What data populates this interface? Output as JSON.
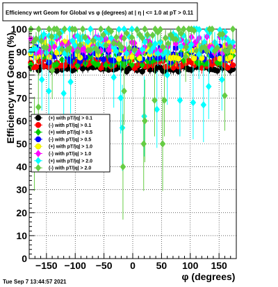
{
  "chart_data": {
    "type": "scatter",
    "title": "Efficiency wrt Geom for Global vs φ (degrees) at |  η | <= 1.0 at pT > 0.11",
    "xlabel": "φ (degrees)",
    "ylabel": "Efficiency wrt Geom (%)",
    "xlim": [
      -180,
      180
    ],
    "ylim": [
      0,
      100
    ],
    "x_ticks": [
      -150,
      -100,
      -50,
      0,
      50,
      100,
      150
    ],
    "x_tick_labels": [
      "−150",
      "−100",
      "−50",
      "0",
      "50",
      "100",
      "150"
    ],
    "y_ticks": [
      0,
      10,
      20,
      30,
      40,
      50,
      60,
      70,
      80,
      90,
      100
    ],
    "y_tick_labels": [
      "0",
      "10",
      "20",
      "30",
      "40",
      "50",
      "60",
      "70",
      "80",
      "90",
      "100"
    ],
    "grid": true,
    "legend_position": "middle-left",
    "series": [
      {
        "name": "(+) with pT/|q| > 0.1",
        "color": "#000000",
        "level": 83,
        "spread": 1.5
      },
      {
        "name": "(-) with pT/|q| > 0.1",
        "color": "#ff0000",
        "level": 85,
        "spread": 2
      },
      {
        "name": "(+) with pT/|q| > 0.5",
        "color": "#00cc00",
        "level": 87,
        "spread": 3
      },
      {
        "name": "(-) with pT/|q| > 0.5",
        "color": "#0000ff",
        "level": 89,
        "spread": 3.5
      },
      {
        "name": "(+) with pT/|q| > 1.0",
        "color": "#ffff00",
        "level": 91,
        "spread": 4
      },
      {
        "name": "(-) with pT/|q| > 1.0",
        "color": "#ff00ff",
        "level": 93,
        "spread": 4
      },
      {
        "name": "(+) with pT/|q| > 2.0",
        "color": "#00ffff",
        "level": 95,
        "spread": 6
      },
      {
        "name": "(-) with pT/|q| > 2.0",
        "color": "#66cc44",
        "level": 96,
        "spread": 6
      }
    ],
    "outliers": [
      {
        "series": 7,
        "x": -164,
        "y": 66
      },
      {
        "series": 7,
        "x": -171,
        "y": 50
      },
      {
        "series": 6,
        "x": -158,
        "y": 78
      },
      {
        "series": 6,
        "x": -146,
        "y": 73
      },
      {
        "series": 7,
        "x": -140,
        "y": 82
      },
      {
        "series": 6,
        "x": -120,
        "y": 72
      },
      {
        "series": 6,
        "x": -108,
        "y": 77
      },
      {
        "series": 6,
        "x": -33,
        "y": 79
      },
      {
        "series": 6,
        "x": -21,
        "y": 70
      },
      {
        "series": 6,
        "x": -18,
        "y": 57
      },
      {
        "series": 7,
        "x": -15,
        "y": 73
      },
      {
        "series": 7,
        "x": -17,
        "y": 40
      },
      {
        "series": 6,
        "x": 20,
        "y": 62
      },
      {
        "series": 7,
        "x": 21,
        "y": 60
      },
      {
        "series": 7,
        "x": 19,
        "y": 50
      },
      {
        "series": 6,
        "x": 42,
        "y": 65
      },
      {
        "series": 7,
        "x": 38,
        "y": 69
      },
      {
        "series": 7,
        "x": 55,
        "y": 69
      },
      {
        "series": 7,
        "x": 52,
        "y": 50
      },
      {
        "series": 6,
        "x": 60,
        "y": 80
      },
      {
        "series": 6,
        "x": 82,
        "y": 69
      },
      {
        "series": 6,
        "x": 105,
        "y": 68
      },
      {
        "series": 6,
        "x": 123,
        "y": 67
      },
      {
        "series": 6,
        "x": 132,
        "y": 75
      },
      {
        "series": 7,
        "x": 160,
        "y": 71
      },
      {
        "series": 6,
        "x": 155,
        "y": 78
      },
      {
        "series": 7,
        "x": 92,
        "y": 88
      },
      {
        "series": 6,
        "x": 115,
        "y": 89
      }
    ]
  },
  "footer": {
    "timestamp": "Tue Sep  7 13:44:57 2021"
  }
}
